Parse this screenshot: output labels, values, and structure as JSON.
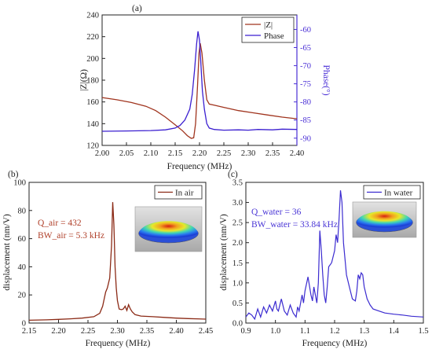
{
  "chart_data": [
    {
      "panel": "(a)",
      "type": "line",
      "xlabel": "Frequency (MHz)",
      "ylabel_left": "|Z|(Ω)",
      "ylabel_right": "Phase(°)",
      "xlim": [
        2.0,
        2.4
      ],
      "ylim_left": [
        120,
        240
      ],
      "ylim_right": [
        -92,
        -56
      ],
      "xticks": [
        "2.00",
        "2.05",
        "2.10",
        "2.15",
        "2.20",
        "2.25",
        "2.30",
        "2.35",
        "2.40"
      ],
      "yticks_left": [
        "120",
        "140",
        "160",
        "180",
        "200",
        "220",
        "240"
      ],
      "yticks_right": [
        "-60",
        "-65",
        "-70",
        "-75",
        "-80",
        "-85",
        "-90"
      ],
      "legend": "top-right",
      "series": [
        {
          "name": "|Z|",
          "axis": "left",
          "color": "#a0341e",
          "points": [
            [
              2.0,
              164
            ],
            [
              2.03,
              162
            ],
            [
              2.06,
              159.5
            ],
            [
              2.09,
              156
            ],
            [
              2.11,
              152
            ],
            [
              2.13,
              146
            ],
            [
              2.15,
              139
            ],
            [
              2.165,
              133.5
            ],
            [
              2.175,
              129
            ],
            [
              2.183,
              126.5
            ],
            [
              2.188,
              127
            ],
            [
              2.192,
              140
            ],
            [
              2.196,
              175
            ],
            [
              2.199,
              205
            ],
            [
              2.2015,
              214
            ],
            [
              2.205,
              205
            ],
            [
              2.21,
              180
            ],
            [
              2.215,
              162
            ],
            [
              2.22,
              158
            ],
            [
              2.23,
              157
            ],
            [
              2.25,
              155
            ],
            [
              2.28,
              152
            ],
            [
              2.31,
              150
            ],
            [
              2.34,
              148
            ],
            [
              2.37,
              146
            ],
            [
              2.4,
              144.5
            ]
          ]
        },
        {
          "name": "Phase",
          "axis": "right",
          "color": "#3b1fd0",
          "points": [
            [
              2.0,
              -88.1
            ],
            [
              2.05,
              -88
            ],
            [
              2.1,
              -87.9
            ],
            [
              2.13,
              -87.7
            ],
            [
              2.15,
              -87.2
            ],
            [
              2.16,
              -86.5
            ],
            [
              2.17,
              -85
            ],
            [
              2.18,
              -82
            ],
            [
              2.185,
              -78
            ],
            [
              2.19,
              -71
            ],
            [
              2.194,
              -64
            ],
            [
              2.197,
              -60.5
            ],
            [
              2.2,
              -63
            ],
            [
              2.203,
              -70
            ],
            [
              2.206,
              -77
            ],
            [
              2.21,
              -82
            ],
            [
              2.215,
              -86
            ],
            [
              2.22,
              -87.2
            ],
            [
              2.23,
              -87.6
            ],
            [
              2.25,
              -87.8
            ],
            [
              2.28,
              -87.7
            ],
            [
              2.3,
              -87.8
            ],
            [
              2.32,
              -87.6
            ],
            [
              2.35,
              -87.7
            ],
            [
              2.37,
              -87.5
            ],
            [
              2.4,
              -87.6
            ]
          ]
        }
      ]
    },
    {
      "panel": "(b)",
      "type": "line",
      "xlabel": "Frequency (MHz)",
      "ylabel": "displacement (nm/V)",
      "xlim": [
        2.15,
        2.45
      ],
      "ylim": [
        0,
        100
      ],
      "xticks": [
        "2.15",
        "2.20",
        "2.25",
        "2.30",
        "2.35",
        "2.40",
        "2.45"
      ],
      "yticks": [
        "0",
        "20",
        "40",
        "60",
        "80",
        "100"
      ],
      "legend": "top-right",
      "annotations": [
        "Q_air = 432",
        "BW_air = 5.3 kHz"
      ],
      "series": [
        {
          "name": "In air",
          "color": "#8b2a16",
          "points": [
            [
              2.15,
              2
            ],
            [
              2.18,
              2.3
            ],
            [
              2.2,
              2.6
            ],
            [
              2.22,
              3
            ],
            [
              2.24,
              3.5
            ],
            [
              2.26,
              4.5
            ],
            [
              2.27,
              7
            ],
            [
              2.275,
              12
            ],
            [
              2.28,
              22
            ],
            [
              2.283,
              25
            ],
            [
              2.287,
              32
            ],
            [
              2.29,
              55
            ],
            [
              2.292,
              86
            ],
            [
              2.294,
              70
            ],
            [
              2.296,
              40
            ],
            [
              2.298,
              25
            ],
            [
              2.3,
              16
            ],
            [
              2.303,
              10
            ],
            [
              2.307,
              9.5
            ],
            [
              2.31,
              10
            ],
            [
              2.313,
              12
            ],
            [
              2.316,
              9
            ],
            [
              2.319,
              13
            ],
            [
              2.322,
              10
            ],
            [
              2.325,
              8
            ],
            [
              2.33,
              6
            ],
            [
              2.34,
              5
            ],
            [
              2.36,
              4.5
            ],
            [
              2.38,
              4
            ],
            [
              2.4,
              3.5
            ],
            [
              2.42,
              3.2
            ],
            [
              2.45,
              2.8
            ]
          ]
        }
      ]
    },
    {
      "panel": "(c)",
      "type": "line",
      "xlabel": "Frequency (MHz)",
      "ylabel": "displacement (nm/V)",
      "xlim": [
        0.9,
        1.5
      ],
      "ylim": [
        0,
        3.5
      ],
      "xticks": [
        "0.9",
        "1.0",
        "1.1",
        "1.2",
        "1.3",
        "1.4",
        "1.5"
      ],
      "yticks": [
        "0.0",
        "0.5",
        "1.0",
        "1.5",
        "2.0",
        "2.5",
        "3.0",
        "3.5"
      ],
      "legend": "top-right",
      "annotations": [
        "Q_water = 36",
        "BW_water = 33.84 kHz"
      ],
      "series": [
        {
          "name": "In water",
          "color": "#3b2bd0",
          "points": [
            [
              0.9,
              0.15
            ],
            [
              0.91,
              0.25
            ],
            [
              0.92,
              0.2
            ],
            [
              0.93,
              0.1
            ],
            [
              0.94,
              0.35
            ],
            [
              0.95,
              0.15
            ],
            [
              0.96,
              0.4
            ],
            [
              0.97,
              0.25
            ],
            [
              0.98,
              0.45
            ],
            [
              0.99,
              0.3
            ],
            [
              1.0,
              0.55
            ],
            [
              1.005,
              0.35
            ],
            [
              1.01,
              0.3
            ],
            [
              1.02,
              0.6
            ],
            [
              1.03,
              0.3
            ],
            [
              1.04,
              0.2
            ],
            [
              1.05,
              0.45
            ],
            [
              1.06,
              0.25
            ],
            [
              1.07,
              0.15
            ],
            [
              1.075,
              0.4
            ],
            [
              1.08,
              0.3
            ],
            [
              1.09,
              0.7
            ],
            [
              1.095,
              0.5
            ],
            [
              1.1,
              0.8
            ],
            [
              1.11,
              1.15
            ],
            [
              1.12,
              0.7
            ],
            [
              1.125,
              0.55
            ],
            [
              1.13,
              0.9
            ],
            [
              1.14,
              0.5
            ],
            [
              1.145,
              1.0
            ],
            [
              1.15,
              2.3
            ],
            [
              1.155,
              1.8
            ],
            [
              1.16,
              1.2
            ],
            [
              1.165,
              0.7
            ],
            [
              1.17,
              0.5
            ],
            [
              1.175,
              0.9
            ],
            [
              1.18,
              1.4
            ],
            [
              1.19,
              1.5
            ],
            [
              1.2,
              1.8
            ],
            [
              1.205,
              2.2
            ],
            [
              1.21,
              2.0
            ],
            [
              1.215,
              2.6
            ],
            [
              1.22,
              3.3
            ],
            [
              1.225,
              3.0
            ],
            [
              1.23,
              2.0
            ],
            [
              1.235,
              1.6
            ],
            [
              1.24,
              1.2
            ],
            [
              1.25,
              0.9
            ],
            [
              1.26,
              0.6
            ],
            [
              1.27,
              0.55
            ],
            [
              1.275,
              0.8
            ],
            [
              1.28,
              1.2
            ],
            [
              1.285,
              1.1
            ],
            [
              1.29,
              1.25
            ],
            [
              1.295,
              1.2
            ],
            [
              1.3,
              0.9
            ],
            [
              1.31,
              0.6
            ],
            [
              1.32,
              0.45
            ],
            [
              1.33,
              0.35
            ],
            [
              1.35,
              0.3
            ],
            [
              1.37,
              0.25
            ],
            [
              1.4,
              0.22
            ],
            [
              1.43,
              0.2
            ],
            [
              1.46,
              0.17
            ],
            [
              1.5,
              0.15
            ]
          ]
        }
      ]
    }
  ],
  "colors": {
    "z_line": "#a0341e",
    "phase_line": "#3b1fd0",
    "phase_axis": "#4a2fd6",
    "air_line": "#8b2a16",
    "air_annotation": "#b0402a",
    "water_line": "#3b2bd0",
    "water_annotation": "#4a36d6"
  }
}
